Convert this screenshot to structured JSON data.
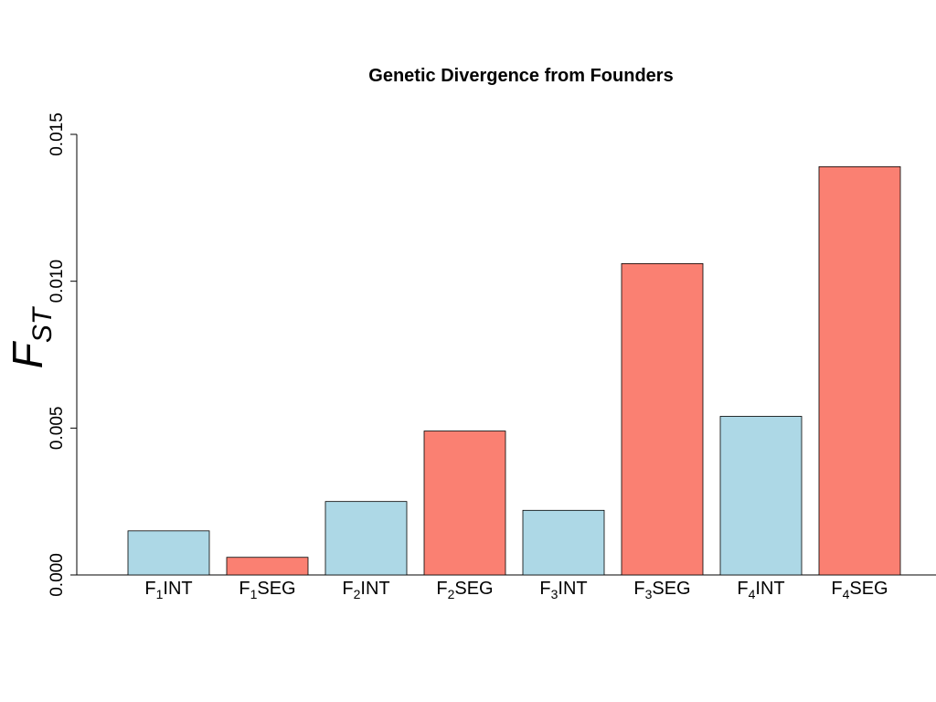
{
  "chart_data": {
    "type": "bar",
    "title": "Genetic Divergence from Founders",
    "ylabel": {
      "main": "F",
      "sub": "ST"
    },
    "xlabel": "",
    "categories": [
      {
        "main": "F",
        "sub": "1",
        "suffix": "INT"
      },
      {
        "main": "F",
        "sub": "1",
        "suffix": "SEG"
      },
      {
        "main": "F",
        "sub": "2",
        "suffix": "INT"
      },
      {
        "main": "F",
        "sub": "2",
        "suffix": "SEG"
      },
      {
        "main": "F",
        "sub": "3",
        "suffix": "INT"
      },
      {
        "main": "F",
        "sub": "3",
        "suffix": "SEG"
      },
      {
        "main": "F",
        "sub": "4",
        "suffix": "INT"
      },
      {
        "main": "F",
        "sub": "4",
        "suffix": "SEG"
      }
    ],
    "values": [
      0.0015,
      0.0006,
      0.0025,
      0.0049,
      0.0022,
      0.0106,
      0.0054,
      0.0139
    ],
    "bar_colors": [
      "#add8e6",
      "#fa8072",
      "#add8e6",
      "#fa8072",
      "#add8e6",
      "#fa8072",
      "#add8e6",
      "#fa8072"
    ],
    "ylim": [
      0,
      0.015
    ],
    "yticks": [
      "0.000",
      "0.005",
      "0.010",
      "0.015"
    ],
    "ytick_values": [
      0,
      0.005,
      0.01,
      0.015
    ],
    "grid": false,
    "legend": "none"
  }
}
